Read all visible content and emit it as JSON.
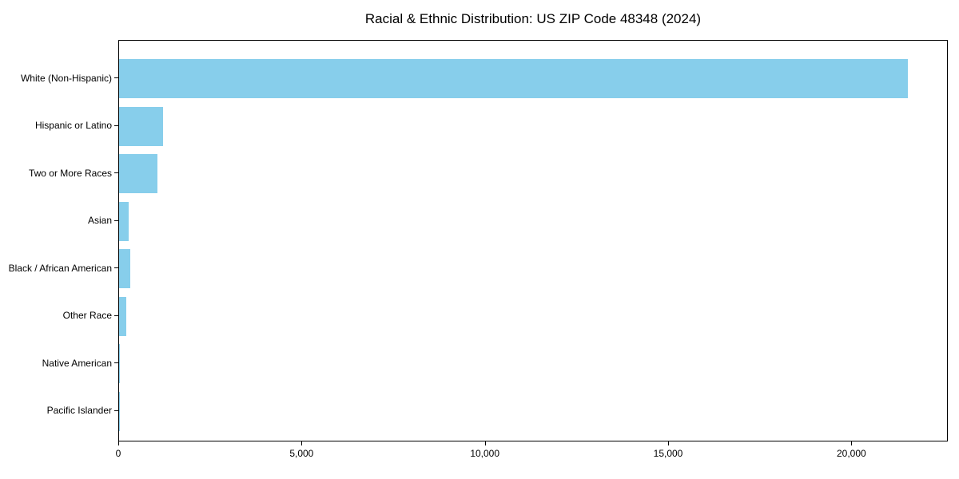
{
  "chart_data": {
    "type": "bar",
    "orientation": "horizontal",
    "title": "Racial & Ethnic Distribution: US ZIP Code 48348 (2024)",
    "categories": [
      "White (Non-Hispanic)",
      "Hispanic or Latino",
      "Two or More Races",
      "Asian",
      "Black / African American",
      "Other Race",
      "Native American",
      "Pacific Islander"
    ],
    "values": [
      21550,
      1200,
      1050,
      270,
      300,
      200,
      20,
      5
    ],
    "xlabel": "",
    "ylabel": "",
    "xlim": [
      0,
      22630
    ],
    "x_ticks": [
      0,
      5000,
      10000,
      15000,
      20000
    ],
    "x_tick_labels": [
      "0",
      "5,000",
      "10,000",
      "15,000",
      "20,000"
    ],
    "bar_color": "#87ceeb",
    "background_color": "#ffffff",
    "axis_color": "#000000",
    "grid": false,
    "legend": null
  }
}
